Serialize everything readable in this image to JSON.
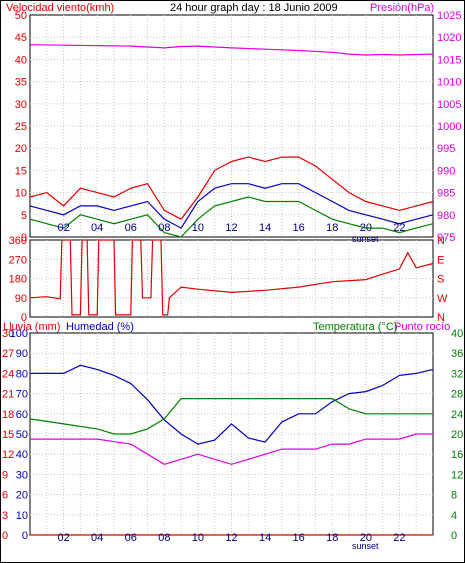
{
  "colors": {
    "red": "#e00000",
    "magenta": "#e000e0",
    "blue": "#0000c0",
    "green": "#008000",
    "grid": "#c8c8c8",
    "axis": "#000000"
  },
  "header": {
    "title_left": "Velocidad viento(kmh)",
    "title_center": "24 hour graph day : 18 Junio 2009",
    "title_right": "Presión(hPa)"
  },
  "panel3_labels": {
    "rain": "Lluvia (mm)",
    "humidity": "Humedad (%)",
    "temperature": "Temperatura (°C)",
    "dewpoint": "Punto rocío"
  },
  "sunset_label": "sunset",
  "chart_data": [
    {
      "type": "line",
      "id": "wind_pressure",
      "x_ticks": [
        "02",
        "04",
        "06",
        "08",
        "10",
        "12",
        "14",
        "16",
        "18",
        "20",
        "22"
      ],
      "x_range_hours": [
        0,
        24
      ],
      "y_left": {
        "label": "Velocidad viento(kmh)",
        "ticks": [
          "0",
          "5",
          "10",
          "15",
          "20",
          "25",
          "30",
          "35",
          "40",
          "45",
          "50"
        ],
        "range": [
          0,
          50
        ]
      },
      "y_right": {
        "label": "Presión(hPa)",
        "ticks": [
          "975",
          "980",
          "985",
          "990",
          "995",
          "1000",
          "1005",
          "1010",
          "1015",
          "1020",
          "1025"
        ],
        "range": [
          975,
          1025
        ]
      },
      "series": [
        {
          "role": "pressure",
          "color": "magenta",
          "axis": "right",
          "x": [
            0,
            2,
            4,
            6,
            7,
            8,
            9,
            10,
            12,
            14,
            16,
            18,
            19,
            20,
            21,
            22,
            23,
            24
          ],
          "y": [
            1018.3,
            1018.2,
            1018.1,
            1018.0,
            1017.8,
            1017.6,
            1017.9,
            1018.0,
            1017.6,
            1017.3,
            1017.0,
            1016.6,
            1016.2,
            1016.0,
            1016.1,
            1016.0,
            1016.1,
            1016.2
          ]
        },
        {
          "role": "wind_gust",
          "color": "red",
          "axis": "left",
          "x": [
            0,
            1,
            2,
            3,
            4,
            5,
            6,
            7,
            8,
            9,
            10,
            11,
            12,
            13,
            14,
            15,
            16,
            17,
            18,
            19,
            20,
            21,
            22,
            23,
            24
          ],
          "y": [
            9,
            10,
            7,
            11,
            10,
            9,
            11,
            12,
            6,
            4,
            9,
            15,
            17,
            18,
            17,
            18,
            18,
            16,
            13,
            10,
            8,
            7,
            6,
            7,
            8
          ]
        },
        {
          "role": "wind_avg",
          "color": "blue",
          "axis": "left",
          "x": [
            0,
            1,
            2,
            3,
            4,
            5,
            6,
            7,
            8,
            9,
            10,
            11,
            12,
            13,
            14,
            15,
            16,
            17,
            18,
            19,
            20,
            21,
            22,
            23,
            24
          ],
          "y": [
            7,
            6,
            5,
            7,
            7,
            6,
            7,
            8,
            4,
            2,
            8,
            11,
            12,
            12,
            11,
            12,
            12,
            10,
            8,
            6,
            5,
            4,
            3,
            4,
            5
          ]
        },
        {
          "role": "wind_min",
          "color": "green",
          "axis": "left",
          "x": [
            0,
            1,
            2,
            3,
            4,
            5,
            6,
            7,
            8,
            9,
            10,
            11,
            12,
            13,
            14,
            15,
            16,
            17,
            18,
            19,
            20,
            21,
            22,
            23,
            24
          ],
          "y": [
            4,
            3,
            2,
            5,
            4,
            3,
            4,
            5,
            1,
            0,
            4,
            7,
            8,
            9,
            8,
            8,
            8,
            6,
            4,
            3,
            2,
            2,
            1,
            2,
            3
          ]
        }
      ]
    },
    {
      "type": "line",
      "id": "wind_direction",
      "x_range_hours": [
        0,
        24
      ],
      "y_left": {
        "ticks": [
          "0",
          "90",
          "180",
          "270",
          "360"
        ],
        "range": [
          0,
          360
        ]
      },
      "y_right": {
        "ticks": [
          "N",
          "W",
          "S",
          "E",
          "N"
        ]
      },
      "series": [
        {
          "role": "direction",
          "color": "red",
          "x": [
            0,
            1,
            1.8,
            1.9,
            2.4,
            2.5,
            3,
            3.1,
            3.4,
            3.5,
            4,
            4.1,
            5,
            5.1,
            6,
            6.1,
            6.6,
            6.7,
            7.2,
            7.3,
            7.8,
            7.9,
            8.2,
            8.3,
            9,
            10,
            12,
            14,
            16,
            18,
            20,
            21,
            22,
            22.5,
            23,
            24
          ],
          "y": [
            90,
            95,
            85,
            360,
            360,
            10,
            10,
            360,
            360,
            10,
            10,
            360,
            360,
            10,
            10,
            360,
            360,
            90,
            90,
            360,
            360,
            10,
            10,
            90,
            140,
            130,
            115,
            125,
            140,
            165,
            175,
            200,
            225,
            300,
            230,
            250
          ]
        }
      ]
    },
    {
      "type": "line",
      "id": "temp_humidity_rain",
      "x_ticks": [
        "02",
        "04",
        "06",
        "08",
        "10",
        "12",
        "14",
        "16",
        "18",
        "20",
        "22"
      ],
      "x_range_hours": [
        0,
        24
      ],
      "y_rain": {
        "label": "Lluvia (mm)",
        "ticks": [
          "0",
          "3",
          "6",
          "9",
          "12",
          "15",
          "18",
          "21",
          "24",
          "27",
          "30"
        ],
        "range": [
          0,
          30
        ]
      },
      "y_humidity": {
        "label": "Humedad (%)",
        "ticks": [
          "0",
          "10",
          "20",
          "30",
          "40",
          "50",
          "60",
          "70",
          "80",
          "90",
          "100"
        ],
        "range": [
          0,
          100
        ]
      },
      "y_temperature": {
        "label": "Temperatura (°C)",
        "ticks": [
          "0",
          "4",
          "8",
          "12",
          "16",
          "20",
          "24",
          "28",
          "32",
          "36",
          "40"
        ],
        "range": [
          0,
          40
        ]
      },
      "series": [
        {
          "role": "humidity",
          "color": "blue",
          "axis": "humidity",
          "x": [
            0,
            2,
            3,
            4,
            5,
            6,
            7,
            8,
            9,
            10,
            11,
            12,
            13,
            14,
            15,
            16,
            17,
            18,
            19,
            20,
            21,
            22,
            23,
            24
          ],
          "y": [
            80,
            80,
            84,
            82,
            79,
            75,
            67,
            57,
            50,
            45,
            47,
            55,
            48,
            46,
            56,
            60,
            60,
            66,
            70,
            71,
            74,
            79,
            80,
            82
          ]
        },
        {
          "role": "temperature",
          "color": "green",
          "axis": "temperature",
          "x": [
            0,
            2,
            4,
            5,
            6,
            7,
            8,
            8.5,
            9,
            10,
            12,
            14,
            16,
            17,
            18,
            19,
            20,
            21,
            22,
            23,
            24
          ],
          "y": [
            23,
            22,
            21,
            20,
            20,
            21,
            23,
            25,
            27,
            27,
            27,
            27,
            27,
            27,
            27,
            25,
            24,
            24,
            24,
            24,
            24
          ]
        },
        {
          "role": "dewpoint",
          "color": "magenta",
          "axis": "temperature",
          "x": [
            0,
            2,
            4,
            6,
            7,
            8,
            9,
            10,
            11,
            12,
            13,
            14,
            15,
            16,
            17,
            18,
            19,
            20,
            21,
            22,
            23,
            24
          ],
          "y": [
            19,
            19,
            19,
            18,
            16,
            14,
            15,
            16,
            15,
            14,
            15,
            16,
            17,
            17,
            17,
            18,
            18,
            19,
            19,
            19,
            20,
            20
          ]
        },
        {
          "role": "rain",
          "color": "red",
          "axis": "rain",
          "x": [
            0,
            24
          ],
          "y": [
            0,
            0
          ]
        }
      ]
    }
  ]
}
